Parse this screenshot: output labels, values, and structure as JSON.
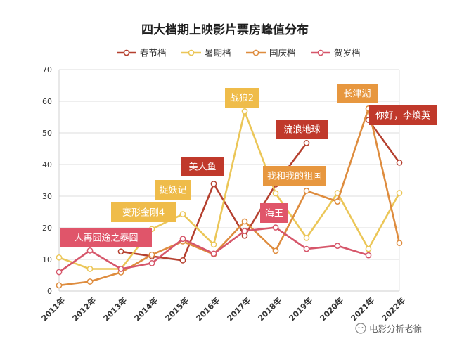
{
  "watermark": "电影分析老徐",
  "chart_data": {
    "type": "line",
    "title": "四大档期上映影片票房峰值分布",
    "categories": [
      "2011年",
      "2012年",
      "2013年",
      "2014年",
      "2015年",
      "2016年",
      "2017年",
      "2018年",
      "2019年",
      "2020年",
      "2021年",
      "2022年"
    ],
    "ylim": [
      0,
      70
    ],
    "yticks": [
      0,
      10,
      20,
      30,
      40,
      50,
      60,
      70
    ],
    "grid": true,
    "legend_position": "top",
    "series": [
      {
        "name": "春节档",
        "color": "#b5402f",
        "values": [
          null,
          null,
          12.5,
          11,
          9.7,
          33.9,
          17.5,
          33.7,
          46.8,
          null,
          54.1,
          40.6
        ]
      },
      {
        "name": "暑期档",
        "color": "#ebc657",
        "values": [
          10.6,
          7,
          7,
          19.6,
          24.3,
          14.7,
          56.8,
          30.9,
          16.8,
          31,
          13.3,
          31
        ]
      },
      {
        "name": "国庆档",
        "color": "#de8c3e",
        "values": [
          1.8,
          3,
          5.9,
          11.5,
          15.7,
          11.6,
          22,
          12.7,
          31.7,
          28.3,
          57.7,
          15.2
        ]
      },
      {
        "name": "贺岁档",
        "color": "#d6566a",
        "values": [
          6,
          12.8,
          7,
          8.8,
          16.5,
          11.8,
          19,
          20.1,
          13.3,
          14.3,
          11.3,
          null
        ]
      }
    ],
    "annotations": [
      {
        "text": "人再囧途之泰囧",
        "category": "2012年",
        "value": 12.8,
        "color": "#e0556a"
      },
      {
        "text": "变形金刚4",
        "category": "2014年",
        "value": 19.6,
        "color": "#efbc4a"
      },
      {
        "text": "捉妖记",
        "category": "2015年",
        "value": 24.3,
        "color": "#efbc4a"
      },
      {
        "text": "美人鱼",
        "category": "2016年",
        "value": 33.9,
        "color": "#c0392b"
      },
      {
        "text": "战狼2",
        "category": "2017年",
        "value": 56.8,
        "color": "#efbc4a"
      },
      {
        "text": "海王",
        "category": "2018年",
        "value": 20.1,
        "color": "#e0556a"
      },
      {
        "text": "流浪地球",
        "category": "2019年",
        "value": 46.8,
        "color": "#c0392b"
      },
      {
        "text": "我和我的祖国",
        "category": "2019年",
        "value": 31.7,
        "color": "#e7973f"
      },
      {
        "text": "长津湖",
        "category": "2021年",
        "value": 57.7,
        "color": "#e7973f"
      },
      {
        "text": "你好，李焕英",
        "category": "2021年",
        "value": 54.1,
        "color": "#c0392b"
      }
    ]
  }
}
